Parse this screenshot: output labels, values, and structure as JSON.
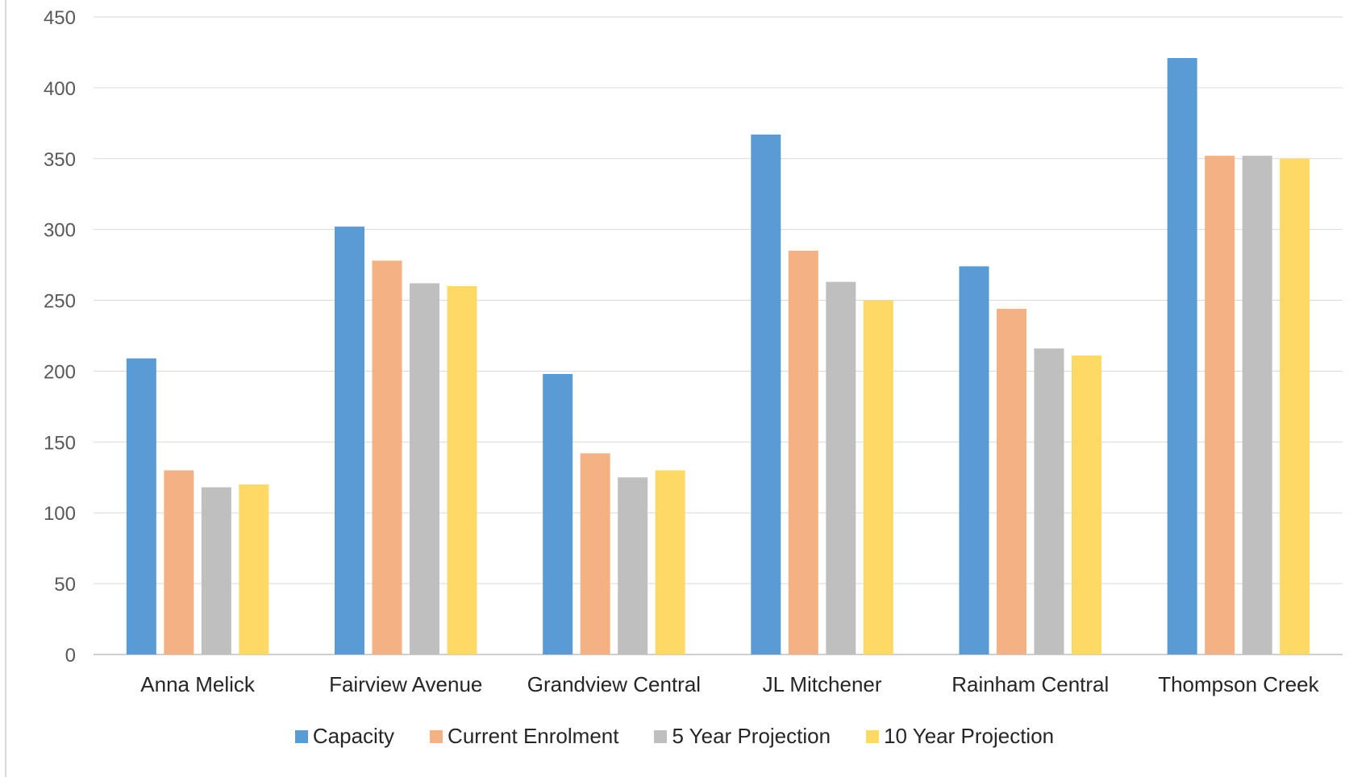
{
  "chart_data": {
    "type": "bar",
    "categories": [
      "Anna Melick",
      "Fairview Avenue",
      "Grandview Central",
      "JL Mitchener",
      "Rainham Central",
      "Thompson Creek"
    ],
    "series": [
      {
        "name": "Capacity",
        "color": "#5b9bd5",
        "values": [
          209,
          302,
          198,
          367,
          274,
          421
        ]
      },
      {
        "name": "Current Enrolment",
        "color": "#f4b183",
        "values": [
          130,
          278,
          142,
          285,
          244,
          352
        ]
      },
      {
        "name": "5 Year Projection",
        "color": "#bfbfbf",
        "values": [
          118,
          262,
          125,
          263,
          216,
          352
        ]
      },
      {
        "name": "10 Year Projection",
        "color": "#ffd966",
        "values": [
          120,
          260,
          130,
          250,
          211,
          350
        ]
      }
    ],
    "ylim": [
      0,
      450
    ],
    "yticks": [
      "0",
      "50",
      "100",
      "150",
      "200",
      "250",
      "300",
      "350",
      "400",
      "450"
    ],
    "grid": true,
    "legend_position": "bottom"
  }
}
